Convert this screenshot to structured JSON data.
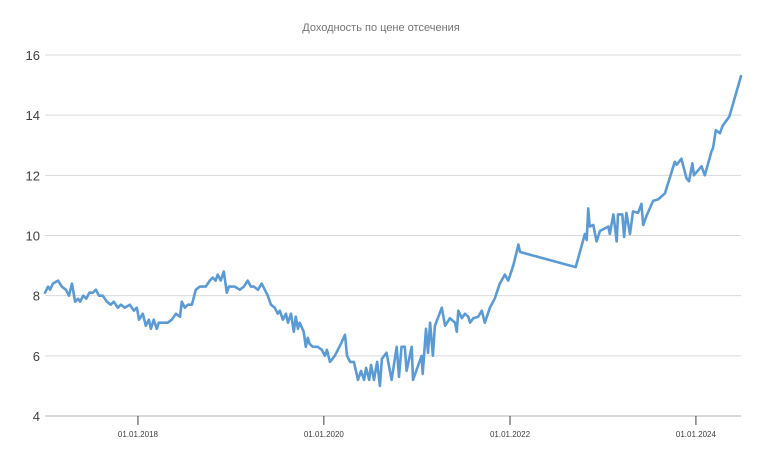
{
  "chart_data": {
    "type": "line",
    "title": "Доходность по цене отсечения",
    "xlabel": "",
    "ylabel": "",
    "xlim": [
      "2017-01-01",
      "2024-06-26"
    ],
    "ylim": [
      4,
      16
    ],
    "y_ticks": [
      4,
      6,
      8,
      10,
      12,
      14,
      16
    ],
    "x_ticks": [
      {
        "date": "2018-01-01",
        "label": "01.01.2018"
      },
      {
        "date": "2020-01-01",
        "label": "01.01.2020"
      },
      {
        "date": "2022-01-01",
        "label": "01.01.2022"
      },
      {
        "date": "2024-01-01",
        "label": "01.01.2024"
      }
    ],
    "grid": "horizontal",
    "legend": "none",
    "colors": {
      "line": "#5b9bd5",
      "grid": "#d9d9d9",
      "axis": "#d9d9d9"
    },
    "series": [
      {
        "x": [
          "2017-01-01",
          "2017-01-13",
          "2017-01-21",
          "2017-02-01",
          "2017-02-21",
          "2017-03-08",
          "2017-03-24",
          "2017-04-05",
          "2017-04-17",
          "2017-04-29",
          "2017-05-11",
          "2017-05-19",
          "2017-05-31",
          "2017-06-12",
          "2017-06-24",
          "2017-07-08",
          "2017-07-20",
          "2017-08-01",
          "2017-08-16",
          "2017-09-01",
          "2017-09-16",
          "2017-09-28",
          "2017-10-14",
          "2017-10-26",
          "2017-11-10",
          "2017-11-30",
          "2017-12-16",
          "2017-12-28",
          "2018-01-05",
          "2018-01-20",
          "2018-02-01",
          "2018-02-13",
          "2018-02-21",
          "2018-03-04",
          "2018-03-16",
          "2018-03-24",
          "2018-04-09",
          "2018-04-28",
          "2018-05-14",
          "2018-05-30",
          "2018-06-15",
          "2018-06-22",
          "2018-07-04",
          "2018-07-16",
          "2018-08-01",
          "2018-08-16",
          "2018-09-01",
          "2018-09-24",
          "2018-10-10",
          "2018-10-22",
          "2018-11-02",
          "2018-11-10",
          "2018-11-22",
          "2018-12-04",
          "2018-12-16",
          "2018-12-24",
          "2019-01-16",
          "2019-02-05",
          "2019-02-21",
          "2019-03-08",
          "2019-03-20",
          "2019-04-01",
          "2019-04-17",
          "2019-05-02",
          "2019-05-14",
          "2019-05-26",
          "2019-06-07",
          "2019-06-22",
          "2019-07-04",
          "2019-07-12",
          "2019-07-24",
          "2019-08-05",
          "2019-08-13",
          "2019-08-25",
          "2019-09-05",
          "2019-09-13",
          "2019-09-21",
          "2019-09-28",
          "2019-10-14",
          "2019-10-22",
          "2019-10-30",
          "2019-11-06",
          "2019-11-18",
          "2019-12-08",
          "2019-12-24",
          "2020-01-05",
          "2020-01-13",
          "2020-01-25",
          "2020-02-13",
          "2020-03-08",
          "2020-03-24",
          "2020-04-01",
          "2020-04-13",
          "2020-04-28",
          "2020-05-14",
          "2020-05-26",
          "2020-06-07",
          "2020-06-15",
          "2020-06-27",
          "2020-07-04",
          "2020-07-16",
          "2020-07-28",
          "2020-08-08",
          "2020-08-16",
          "2020-09-03",
          "2020-09-23",
          "2020-10-13",
          "2020-10-22",
          "2020-11-01",
          "2020-11-14",
          "2020-11-21",
          "2020-12-11",
          "2020-12-16",
          "2021-01-19",
          "2021-01-23",
          "2021-02-05",
          "2021-02-13",
          "2021-02-21",
          "2021-03-04",
          "2021-03-12",
          "2021-04-08",
          "2021-04-21",
          "2021-05-10",
          "2021-05-30",
          "2021-06-06",
          "2021-06-12",
          "2021-06-26",
          "2021-07-08",
          "2021-07-21",
          "2021-07-28",
          "2021-08-10",
          "2021-08-29",
          "2021-09-12",
          "2021-09-24",
          "2021-10-14",
          "2021-11-02",
          "2021-11-22",
          "2021-12-12",
          "2021-12-25",
          "2022-01-14",
          "2022-02-03",
          "2022-02-09",
          "2022-09-16",
          "2022-10-22",
          "2022-10-29",
          "2022-11-04",
          "2022-11-10",
          "2022-11-24",
          "2022-12-07",
          "2022-12-20",
          "2023-01-22",
          "2023-01-28",
          "2023-02-11",
          "2023-02-24",
          "2023-03-01",
          "2023-03-18",
          "2023-03-25",
          "2023-04-03",
          "2023-04-17",
          "2023-04-29",
          "2023-05-19",
          "2023-06-01",
          "2023-06-08",
          "2023-06-21",
          "2023-07-17",
          "2023-08-06",
          "2023-09-01",
          "2023-10-10",
          "2023-10-17",
          "2023-11-05",
          "2023-11-25",
          "2023-12-05",
          "2023-12-18",
          "2023-12-24",
          "2024-01-23",
          "2024-02-05",
          "2024-03-02",
          "2024-03-08",
          "2024-03-19",
          "2024-04-04",
          "2024-04-15",
          "2024-05-11",
          "2024-06-26"
        ],
        "y": [
          8.1,
          8.3,
          8.2,
          8.4,
          8.5,
          8.3,
          8.2,
          8.0,
          8.4,
          7.8,
          7.9,
          7.8,
          8.0,
          7.9,
          8.1,
          8.1,
          8.2,
          8.0,
          8.0,
          7.8,
          7.7,
          7.8,
          7.6,
          7.7,
          7.6,
          7.7,
          7.5,
          7.6,
          7.2,
          7.4,
          7.0,
          7.2,
          6.9,
          7.2,
          6.9,
          7.1,
          7.1,
          7.1,
          7.2,
          7.4,
          7.3,
          7.8,
          7.6,
          7.7,
          7.7,
          8.2,
          8.3,
          8.3,
          8.5,
          8.6,
          8.5,
          8.7,
          8.5,
          8.8,
          8.1,
          8.3,
          8.3,
          8.2,
          8.3,
          8.5,
          8.3,
          8.3,
          8.2,
          8.4,
          8.2,
          8.0,
          7.7,
          7.6,
          7.4,
          7.5,
          7.2,
          7.4,
          7.1,
          7.4,
          6.8,
          7.3,
          6.9,
          7.1,
          6.8,
          6.3,
          6.6,
          6.4,
          6.3,
          6.3,
          6.2,
          6.0,
          6.2,
          5.8,
          6.0,
          6.4,
          6.7,
          6.0,
          5.8,
          5.8,
          5.2,
          5.5,
          5.2,
          5.6,
          5.2,
          5.7,
          5.2,
          5.8,
          5.0,
          5.9,
          6.1,
          5.2,
          6.3,
          5.3,
          6.3,
          6.3,
          5.5,
          6.3,
          5.2,
          6.0,
          5.4,
          6.9,
          6.1,
          7.1,
          6.0,
          7.0,
          7.6,
          7.0,
          7.25,
          7.1,
          6.8,
          7.5,
          7.25,
          7.4,
          7.3,
          7.1,
          7.25,
          7.3,
          7.5,
          7.1,
          7.6,
          7.9,
          8.4,
          8.7,
          8.5,
          9.0,
          9.7,
          9.45,
          8.95,
          10.05,
          9.85,
          10.9,
          10.3,
          10.35,
          9.8,
          10.15,
          10.3,
          10.05,
          10.7,
          9.8,
          10.7,
          10.7,
          9.95,
          10.75,
          10.05,
          10.8,
          10.75,
          11.05,
          10.35,
          10.65,
          11.15,
          11.2,
          11.4,
          12.45,
          12.35,
          12.55,
          11.9,
          11.8,
          12.4,
          12.0,
          12.3,
          12.0,
          12.8,
          12.9,
          13.5,
          13.4,
          13.65,
          13.95,
          15.3
        ]
      }
    ]
  }
}
